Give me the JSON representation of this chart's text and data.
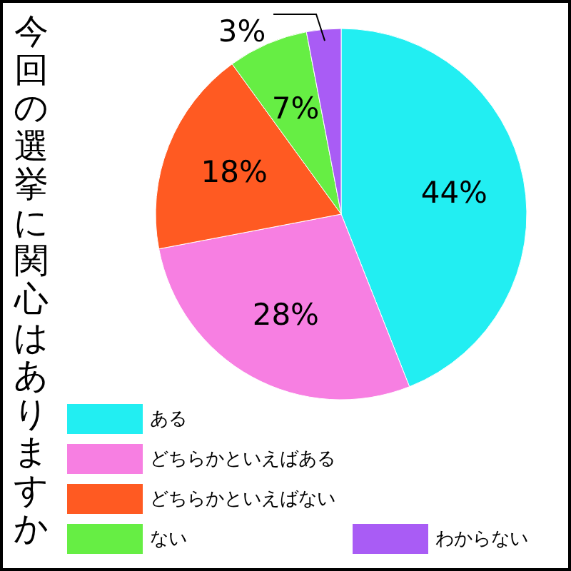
{
  "chart_data": {
    "type": "pie",
    "title": "今回の選挙に関心はありますか",
    "categories": [
      "ある",
      "どちらかといえばある",
      "どちらかといえばない",
      "ない",
      "わからない"
    ],
    "values": [
      44,
      28,
      18,
      7,
      3
    ],
    "colors": [
      "#22eef2",
      "#f77fe2",
      "#ff5a22",
      "#66ee44",
      "#a95cf5"
    ],
    "value_labels": [
      "44%",
      "28%",
      "18%",
      "7%",
      "3%"
    ],
    "legend": "bottom"
  }
}
